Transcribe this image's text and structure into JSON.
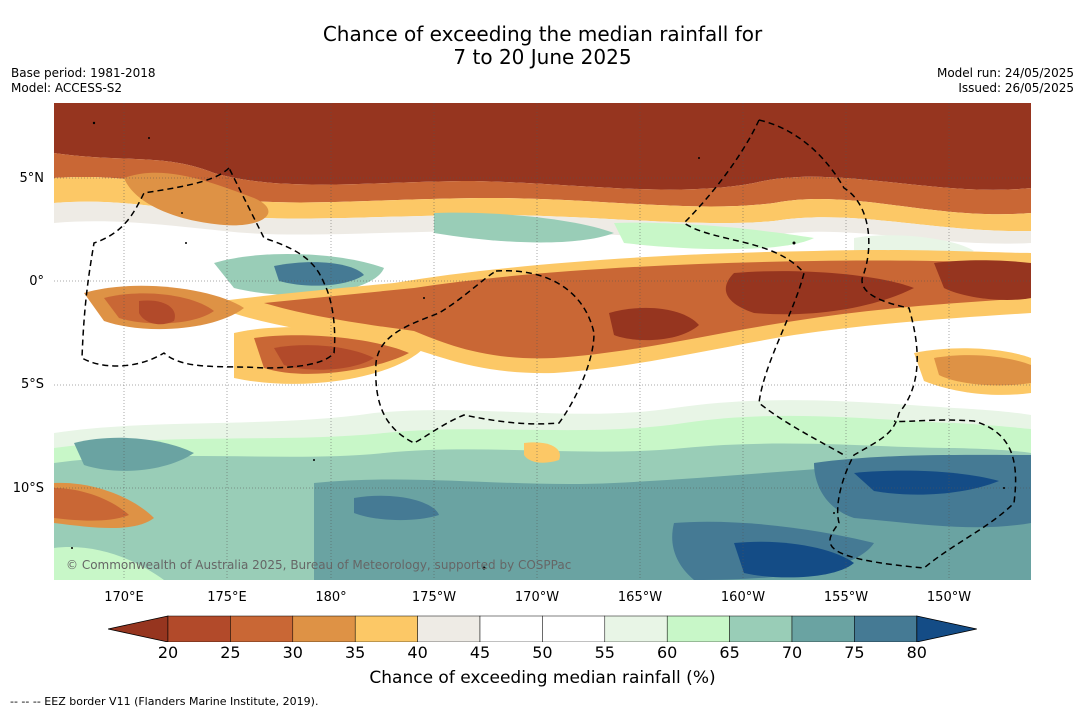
{
  "title": {
    "line1": "Chance of exceeding the median rainfall for",
    "line2": "7 to 20 June 2025"
  },
  "meta_left": {
    "base_period": "Base period: 1981-2018",
    "model": "Model: ACCESS-S2"
  },
  "meta_right": {
    "model_run": "Model run: 24/05/2025",
    "issued": "Issued: 26/05/2025"
  },
  "map": {
    "latitude_labels": [
      "5°N",
      "0°",
      "5°S",
      "10°S"
    ],
    "longitude_labels": [
      "170°E",
      "175°E",
      "180°",
      "175°W",
      "170°W",
      "165°W",
      "160°W",
      "155°W",
      "150°W"
    ],
    "copyright": "© Commonwealth of Australia 2025, Bureau of Meteorology, supported by COSPPac",
    "ocean_color": "#ffffff"
  },
  "colorbar": {
    "title": "Chance of exceeding median rainfall (%)",
    "ticks": [
      "20",
      "25",
      "30",
      "35",
      "40",
      "45",
      "50",
      "55",
      "60",
      "65",
      "70",
      "75",
      "80"
    ],
    "colors": [
      "#96351f",
      "#b24a2a",
      "#c96735",
      "#de9245",
      "#fcc866",
      "#eeebe5",
      "#ffffff",
      "#ffffff",
      "#e8f5e6",
      "#c8f7c8",
      "#99cdb7",
      "#6aa3a2",
      "#457a94",
      "#144c86"
    ]
  },
  "footer": "--  --  -- EEZ border V11 (Flanders Marine Institute, 2019)."
}
